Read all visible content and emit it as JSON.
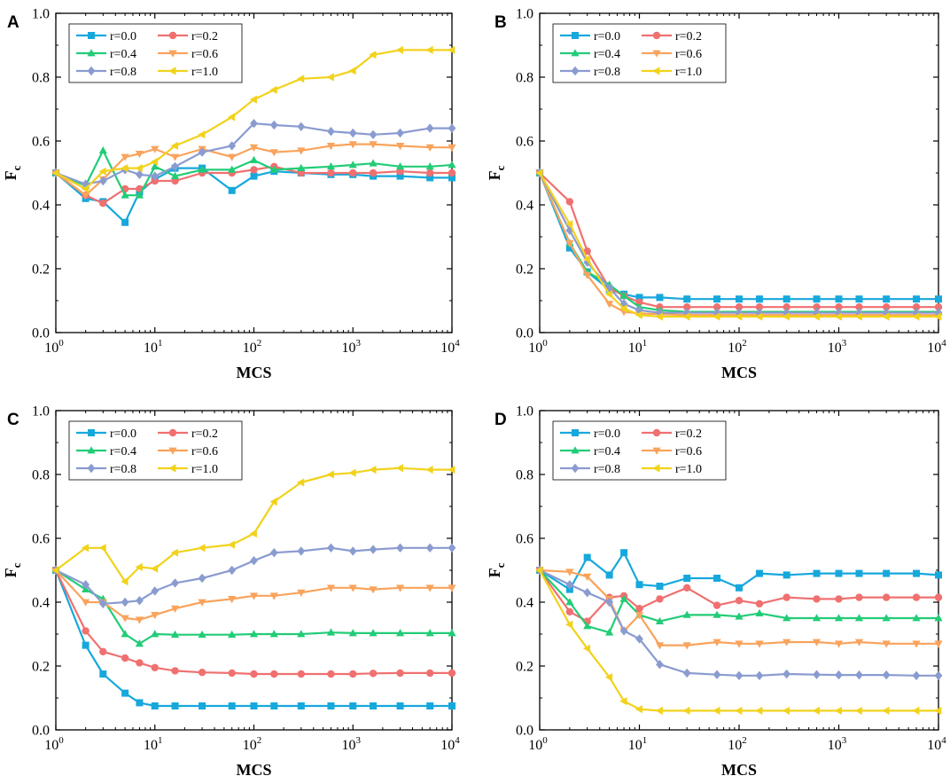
{
  "chart_data": [
    {
      "type": "line",
      "panel_label": "A",
      "xlabel": "MCS",
      "ylabel": "F",
      "ylabel_sub": "c",
      "xscale": "log",
      "xlim": [
        1,
        10000
      ],
      "ylim": [
        0,
        1.0
      ],
      "x_tick_base": "10",
      "x_tick_exponents": [
        "0",
        "1",
        "2",
        "3",
        "4"
      ],
      "y_ticks": [
        "0.0",
        "0.2",
        "0.4",
        "0.6",
        "0.8",
        "1.0"
      ],
      "legend_location": "top-left",
      "x": [
        1,
        2,
        3,
        5,
        7,
        10,
        16,
        30,
        60,
        100,
        160,
        300,
        600,
        1000,
        1600,
        3000,
        6000,
        10000
      ],
      "series": [
        {
          "name": "r=0.0",
          "values": [
            0.5,
            0.42,
            0.41,
            0.345,
            0.44,
            0.48,
            0.515,
            0.515,
            0.445,
            0.49,
            0.505,
            0.5,
            0.495,
            0.495,
            0.49,
            0.49,
            0.485,
            0.485
          ]
        },
        {
          "name": "r=0.2",
          "values": [
            0.5,
            0.43,
            0.405,
            0.45,
            0.45,
            0.475,
            0.475,
            0.5,
            0.5,
            0.51,
            0.52,
            0.5,
            0.5,
            0.5,
            0.5,
            0.505,
            0.5,
            0.5
          ]
        },
        {
          "name": "r=0.4",
          "values": [
            0.5,
            0.46,
            0.57,
            0.43,
            0.43,
            0.52,
            0.49,
            0.51,
            0.51,
            0.54,
            0.51,
            0.515,
            0.52,
            0.525,
            0.53,
            0.52,
            0.52,
            0.525
          ]
        },
        {
          "name": "r=0.6",
          "values": [
            0.5,
            0.43,
            0.48,
            0.55,
            0.56,
            0.575,
            0.55,
            0.575,
            0.55,
            0.58,
            0.565,
            0.57,
            0.585,
            0.59,
            0.59,
            0.585,
            0.58,
            0.58
          ]
        },
        {
          "name": "r=0.8",
          "values": [
            0.5,
            0.465,
            0.475,
            0.51,
            0.495,
            0.49,
            0.52,
            0.565,
            0.585,
            0.655,
            0.65,
            0.645,
            0.63,
            0.625,
            0.62,
            0.625,
            0.64,
            0.64
          ]
        },
        {
          "name": "r=1.0",
          "values": [
            0.5,
            0.45,
            0.505,
            0.515,
            0.515,
            0.535,
            0.585,
            0.62,
            0.675,
            0.73,
            0.76,
            0.795,
            0.8,
            0.82,
            0.87,
            0.885,
            0.885,
            0.885
          ]
        }
      ]
    },
    {
      "type": "line",
      "panel_label": "B",
      "xlabel": "MCS",
      "ylabel": "F",
      "ylabel_sub": "c",
      "xscale": "log",
      "xlim": [
        1,
        10000
      ],
      "ylim": [
        0,
        1.0
      ],
      "x_tick_base": "10",
      "x_tick_exponents": [
        "0",
        "1",
        "2",
        "3",
        "4"
      ],
      "y_ticks": [
        "0.0",
        "0.2",
        "0.4",
        "0.6",
        "0.8",
        "1.0"
      ],
      "legend_location": "top-left",
      "x": [
        1,
        2,
        3,
        5,
        7,
        10,
        16,
        30,
        60,
        100,
        160,
        300,
        600,
        1000,
        1600,
        3000,
        6000,
        10000
      ],
      "series": [
        {
          "name": "r=0.0",
          "values": [
            0.5,
            0.265,
            0.19,
            0.135,
            0.12,
            0.11,
            0.11,
            0.105,
            0.105,
            0.105,
            0.105,
            0.105,
            0.105,
            0.105,
            0.105,
            0.105,
            0.105,
            0.105
          ]
        },
        {
          "name": "r=0.2",
          "values": [
            0.5,
            0.41,
            0.255,
            0.14,
            0.115,
            0.095,
            0.08,
            0.08,
            0.08,
            0.08,
            0.08,
            0.08,
            0.08,
            0.08,
            0.08,
            0.08,
            0.08,
            0.08
          ]
        },
        {
          "name": "r=0.4",
          "values": [
            0.5,
            0.28,
            0.19,
            0.15,
            0.115,
            0.08,
            0.07,
            0.065,
            0.065,
            0.065,
            0.065,
            0.065,
            0.065,
            0.065,
            0.065,
            0.065,
            0.065,
            0.065
          ]
        },
        {
          "name": "r=0.6",
          "values": [
            0.5,
            0.28,
            0.18,
            0.09,
            0.065,
            0.06,
            0.058,
            0.055,
            0.055,
            0.055,
            0.055,
            0.055,
            0.055,
            0.055,
            0.055,
            0.055,
            0.055,
            0.055
          ]
        },
        {
          "name": "r=0.8",
          "values": [
            0.5,
            0.32,
            0.22,
            0.14,
            0.09,
            0.07,
            0.062,
            0.062,
            0.062,
            0.062,
            0.062,
            0.062,
            0.062,
            0.062,
            0.062,
            0.062,
            0.062,
            0.062
          ]
        },
        {
          "name": "r=1.0",
          "values": [
            0.5,
            0.34,
            0.23,
            0.12,
            0.075,
            0.055,
            0.05,
            0.05,
            0.05,
            0.05,
            0.05,
            0.05,
            0.05,
            0.05,
            0.05,
            0.05,
            0.05,
            0.05
          ]
        }
      ]
    },
    {
      "type": "line",
      "panel_label": "C",
      "xlabel": "MCS",
      "ylabel": "F",
      "ylabel_sub": "c",
      "xscale": "log",
      "xlim": [
        1,
        10000
      ],
      "ylim": [
        0,
        1.0
      ],
      "x_tick_base": "10",
      "x_tick_exponents": [
        "0",
        "1",
        "2",
        "3",
        "4"
      ],
      "y_ticks": [
        "0.0",
        "0.2",
        "0.4",
        "0.6",
        "0.8",
        "1.0"
      ],
      "legend_location": "top-left",
      "x": [
        1,
        2,
        3,
        5,
        7,
        10,
        16,
        30,
        60,
        100,
        160,
        300,
        600,
        1000,
        1600,
        3000,
        6000,
        10000
      ],
      "series": [
        {
          "name": "r=0.0",
          "values": [
            0.5,
            0.265,
            0.175,
            0.115,
            0.085,
            0.075,
            0.075,
            0.075,
            0.075,
            0.075,
            0.075,
            0.075,
            0.075,
            0.075,
            0.075,
            0.075,
            0.075,
            0.075
          ]
        },
        {
          "name": "r=0.2",
          "values": [
            0.5,
            0.31,
            0.245,
            0.225,
            0.21,
            0.195,
            0.185,
            0.18,
            0.178,
            0.175,
            0.175,
            0.175,
            0.175,
            0.175,
            0.177,
            0.178,
            0.178,
            0.178
          ]
        },
        {
          "name": "r=0.4",
          "values": [
            0.5,
            0.44,
            0.41,
            0.3,
            0.27,
            0.3,
            0.298,
            0.298,
            0.298,
            0.3,
            0.3,
            0.3,
            0.305,
            0.303,
            0.303,
            0.303,
            0.303,
            0.303
          ]
        },
        {
          "name": "r=0.6",
          "values": [
            0.5,
            0.4,
            0.4,
            0.35,
            0.345,
            0.36,
            0.38,
            0.4,
            0.41,
            0.42,
            0.42,
            0.43,
            0.445,
            0.445,
            0.44,
            0.445,
            0.445,
            0.445
          ]
        },
        {
          "name": "r=0.8",
          "values": [
            0.5,
            0.455,
            0.395,
            0.4,
            0.405,
            0.435,
            0.46,
            0.475,
            0.5,
            0.53,
            0.555,
            0.56,
            0.57,
            0.56,
            0.565,
            0.57,
            0.57,
            0.57
          ]
        },
        {
          "name": "r=1.0",
          "values": [
            0.5,
            0.57,
            0.57,
            0.465,
            0.51,
            0.505,
            0.555,
            0.57,
            0.58,
            0.615,
            0.715,
            0.775,
            0.8,
            0.805,
            0.815,
            0.82,
            0.815,
            0.815
          ]
        }
      ]
    },
    {
      "type": "line",
      "panel_label": "D",
      "xlabel": "MCS",
      "ylabel": "F",
      "ylabel_sub": "c",
      "xscale": "log",
      "xlim": [
        1,
        10000
      ],
      "ylim": [
        0,
        1.0
      ],
      "x_tick_base": "10",
      "x_tick_exponents": [
        "0",
        "1",
        "2",
        "3",
        "4"
      ],
      "y_ticks": [
        "0.0",
        "0.2",
        "0.4",
        "0.6",
        "0.8",
        "1.0"
      ],
      "legend_location": "top-left",
      "x": [
        1,
        2,
        3,
        5,
        7,
        10,
        16,
        30,
        60,
        100,
        160,
        300,
        600,
        1000,
        1600,
        3000,
        6000,
        10000
      ],
      "series": [
        {
          "name": "r=0.0",
          "values": [
            0.5,
            0.44,
            0.54,
            0.485,
            0.555,
            0.455,
            0.45,
            0.475,
            0.475,
            0.445,
            0.49,
            0.485,
            0.49,
            0.49,
            0.49,
            0.49,
            0.49,
            0.485
          ]
        },
        {
          "name": "r=0.2",
          "values": [
            0.5,
            0.37,
            0.34,
            0.415,
            0.42,
            0.38,
            0.41,
            0.445,
            0.39,
            0.405,
            0.395,
            0.415,
            0.41,
            0.41,
            0.415,
            0.415,
            0.415,
            0.415
          ]
        },
        {
          "name": "r=0.4",
          "values": [
            0.5,
            0.4,
            0.325,
            0.305,
            0.41,
            0.36,
            0.34,
            0.36,
            0.36,
            0.355,
            0.365,
            0.35,
            0.35,
            0.35,
            0.35,
            0.35,
            0.35,
            0.35
          ]
        },
        {
          "name": "r=0.6",
          "values": [
            0.5,
            0.495,
            0.48,
            0.41,
            0.31,
            0.36,
            0.265,
            0.265,
            0.275,
            0.27,
            0.27,
            0.275,
            0.275,
            0.27,
            0.275,
            0.27,
            0.27,
            0.27
          ]
        },
        {
          "name": "r=0.8",
          "values": [
            0.5,
            0.455,
            0.43,
            0.4,
            0.31,
            0.285,
            0.205,
            0.178,
            0.173,
            0.17,
            0.17,
            0.175,
            0.173,
            0.172,
            0.172,
            0.172,
            0.17,
            0.17
          ]
        },
        {
          "name": "r=1.0",
          "values": [
            0.5,
            0.33,
            0.255,
            0.165,
            0.09,
            0.065,
            0.06,
            0.06,
            0.06,
            0.06,
            0.06,
            0.06,
            0.06,
            0.06,
            0.06,
            0.06,
            0.06,
            0.06
          ]
        }
      ]
    }
  ],
  "series_styles": [
    {
      "name": "r=0.0",
      "color": "#16a8dc",
      "marker": "square"
    },
    {
      "name": "r=0.2",
      "color": "#f07070",
      "marker": "circle"
    },
    {
      "name": "r=0.4",
      "color": "#22cc77",
      "marker": "triangle-up"
    },
    {
      "name": "r=0.6",
      "color": "#f9a35c",
      "marker": "triangle-down"
    },
    {
      "name": "r=0.8",
      "color": "#8a9bd0",
      "marker": "diamond"
    },
    {
      "name": "r=1.0",
      "color": "#f2d21b",
      "marker": "triangle-left"
    }
  ]
}
